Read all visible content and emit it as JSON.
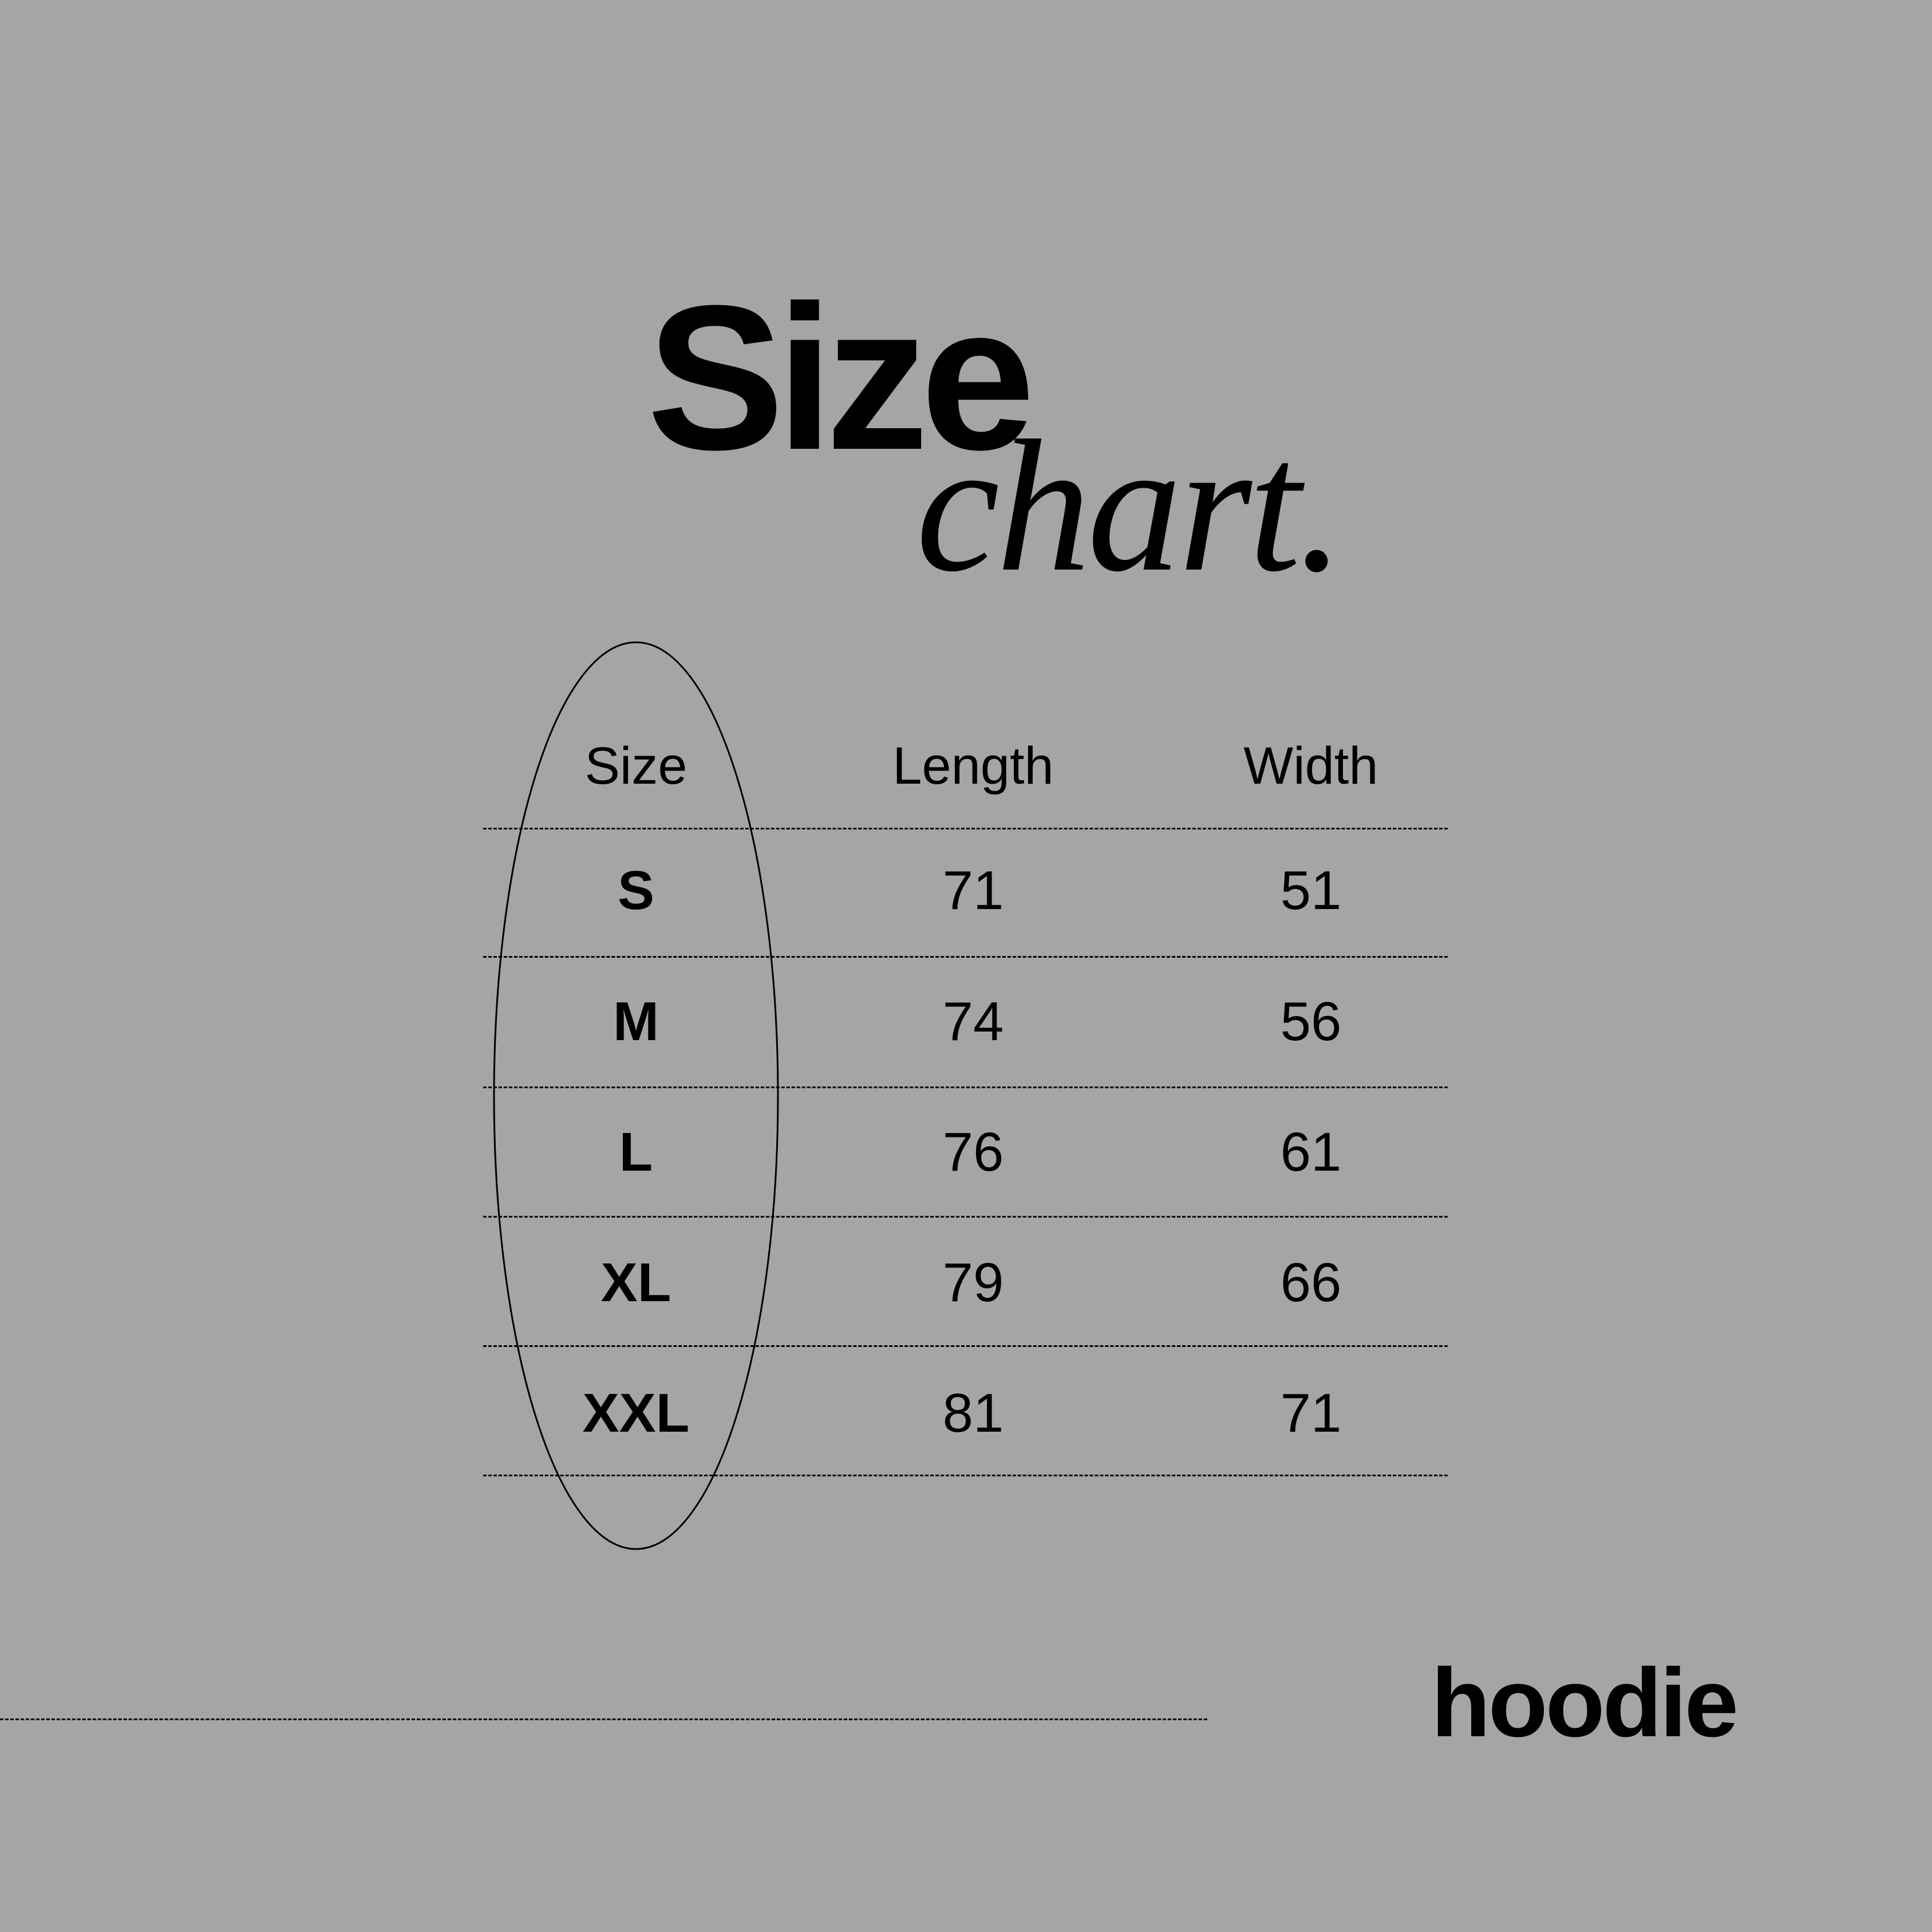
{
  "title": {
    "line1": "Size",
    "line2": "chart."
  },
  "table": {
    "headers": [
      "Size",
      "Length",
      "Width"
    ],
    "rows": [
      {
        "size": "S",
        "length": "71",
        "width": "51"
      },
      {
        "size": "M",
        "length": "74",
        "width": "56"
      },
      {
        "size": "L",
        "length": "76",
        "width": "61"
      },
      {
        "size": "XL",
        "length": "79",
        "width": "66"
      },
      {
        "size": "XXL",
        "length": "81",
        "width": "71"
      }
    ]
  },
  "product": "hoodie",
  "colors": {
    "background": "#a5a5a5",
    "text": "#000000"
  }
}
